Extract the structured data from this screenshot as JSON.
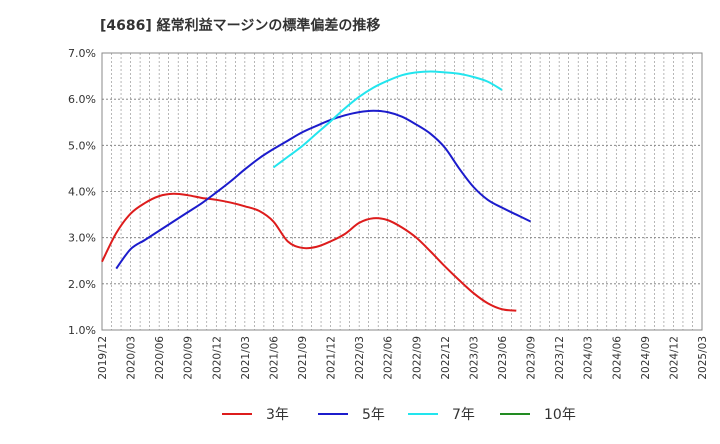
{
  "chart_data": {
    "type": "line",
    "title": "[4686]  経常利益マージンの標準偏差の推移",
    "xlabel": "",
    "ylabel": "",
    "ylim": [
      1.0,
      7.0
    ],
    "y_ticks": [
      "1.0%",
      "2.0%",
      "3.0%",
      "4.0%",
      "5.0%",
      "6.0%",
      "7.0%"
    ],
    "x_ticks": [
      "2019/12",
      "2020/03",
      "2020/06",
      "2020/09",
      "2020/12",
      "2021/03",
      "2021/06",
      "2021/09",
      "2021/12",
      "2022/03",
      "2022/06",
      "2022/09",
      "2022/12",
      "2023/03",
      "2023/06",
      "2023/09",
      "2023/12",
      "2024/03",
      "2024/06",
      "2024/09",
      "2024/12",
      "2025/03"
    ],
    "grid": true,
    "legend_position": "bottom",
    "series": [
      {
        "name": "3年",
        "color": "#dd1c1c",
        "values": [
          2.48,
          3.1,
          3.52,
          3.75,
          3.9,
          3.95,
          3.92,
          3.86,
          3.82,
          3.76,
          3.68,
          3.58,
          3.35,
          2.92,
          2.78,
          2.8,
          2.92,
          3.08,
          3.32,
          3.42,
          3.38,
          3.22,
          3.0,
          2.7,
          2.38,
          2.08,
          1.8,
          1.58,
          1.45,
          1.42
        ]
      },
      {
        "name": "5年",
        "color": "#1c1ccc",
        "values": [
          null,
          2.33,
          2.75,
          2.95,
          3.15,
          3.35,
          3.55,
          3.75,
          3.98,
          4.22,
          4.48,
          4.72,
          4.92,
          5.1,
          5.28,
          5.42,
          5.55,
          5.65,
          5.72,
          5.75,
          5.72,
          5.62,
          5.45,
          5.25,
          4.95,
          4.5,
          4.1,
          3.82,
          3.65,
          3.5,
          3.35
        ]
      },
      {
        "name": "7年",
        "color": "#22e5ee",
        "values": [
          null,
          null,
          null,
          null,
          null,
          null,
          null,
          null,
          null,
          null,
          null,
          null,
          4.52,
          4.75,
          4.98,
          5.25,
          5.52,
          5.8,
          6.05,
          6.25,
          6.4,
          6.52,
          6.58,
          6.6,
          6.58,
          6.55,
          6.48,
          6.38,
          6.2
        ]
      },
      {
        "name": "10年",
        "color": "#228b22",
        "values": []
      }
    ]
  }
}
